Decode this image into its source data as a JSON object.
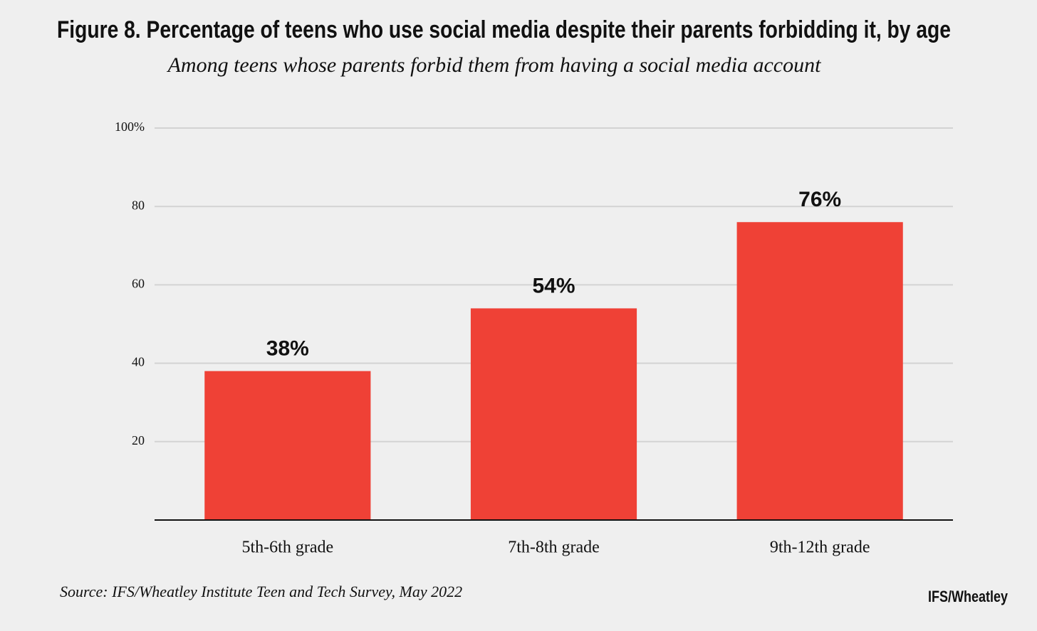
{
  "chart_data": {
    "type": "bar",
    "title": "Figure 8. Percentage of teens who use social media despite their parents forbidding it, by age",
    "subtitle": "Among teens whose parents forbid them from having a social media account",
    "categories": [
      "5th-6th grade",
      "7th-8th grade",
      "9th-12th grade"
    ],
    "values": [
      38,
      54,
      76
    ],
    "value_labels": [
      "38%",
      "54%",
      "76%"
    ],
    "color": "#ef4136",
    "ylim": [
      0,
      100
    ],
    "yticks": [
      20,
      40,
      60,
      80,
      {
        "value": 100,
        "label": "100%"
      }
    ],
    "grid": true,
    "source": "Source: IFS/Wheatley Institute Teen and Tech Survey, May 2022",
    "credit": "IFS/Wheatley"
  }
}
